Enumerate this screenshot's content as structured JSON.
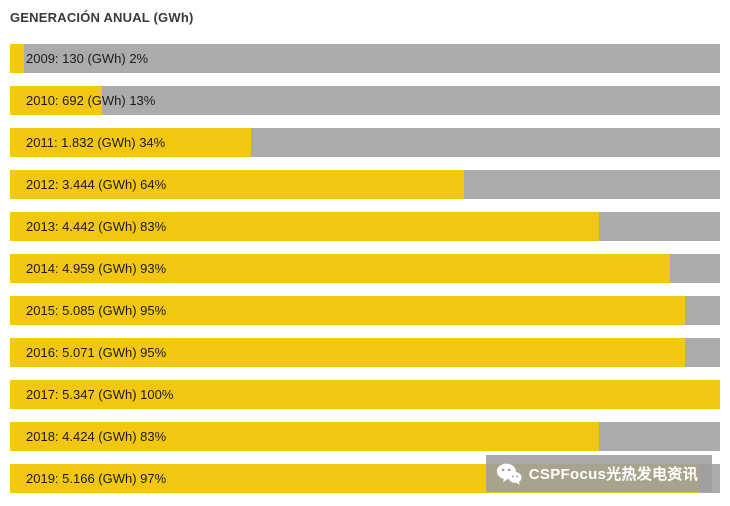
{
  "chart_data": {
    "type": "bar",
    "orientation": "horizontal",
    "title": "GENERACIÓN ANUAL (GWh)",
    "unit": "GWh",
    "categories": [
      "2009",
      "2010",
      "2011",
      "2012",
      "2013",
      "2014",
      "2015",
      "2016",
      "2017",
      "2018",
      "2019"
    ],
    "values_gwh": [
      130,
      692,
      1832,
      3444,
      4442,
      4959,
      5085,
      5071,
      5347,
      4424,
      5166
    ],
    "percent_of_max": [
      2,
      13,
      34,
      64,
      83,
      93,
      95,
      95,
      100,
      83,
      97
    ],
    "bar_labels": [
      "2009: 130 (GWh) 2%",
      "2010: 692 (GWh) 13%",
      "2011: 1.832 (GWh) 34%",
      "2012: 3.444 (GWh) 64%",
      "2013: 4.442 (GWh) 83%",
      "2014: 4.959 (GWh) 93%",
      "2015: 5.085 (GWh) 95%",
      "2016: 5.071 (GWh) 95%",
      "2017: 5.347 (GWh) 100%",
      "2018: 4.424 (GWh) 83%",
      "2019: 5.166 (GWh) 97%"
    ],
    "bar_color": "#F2C711",
    "track_color": "#ABABAB",
    "xlim": [
      0,
      5347
    ],
    "legend": "none",
    "grid": "off"
  },
  "watermark": {
    "text": "CSPFocus光热发电资讯",
    "icon": "wechat-icon"
  }
}
